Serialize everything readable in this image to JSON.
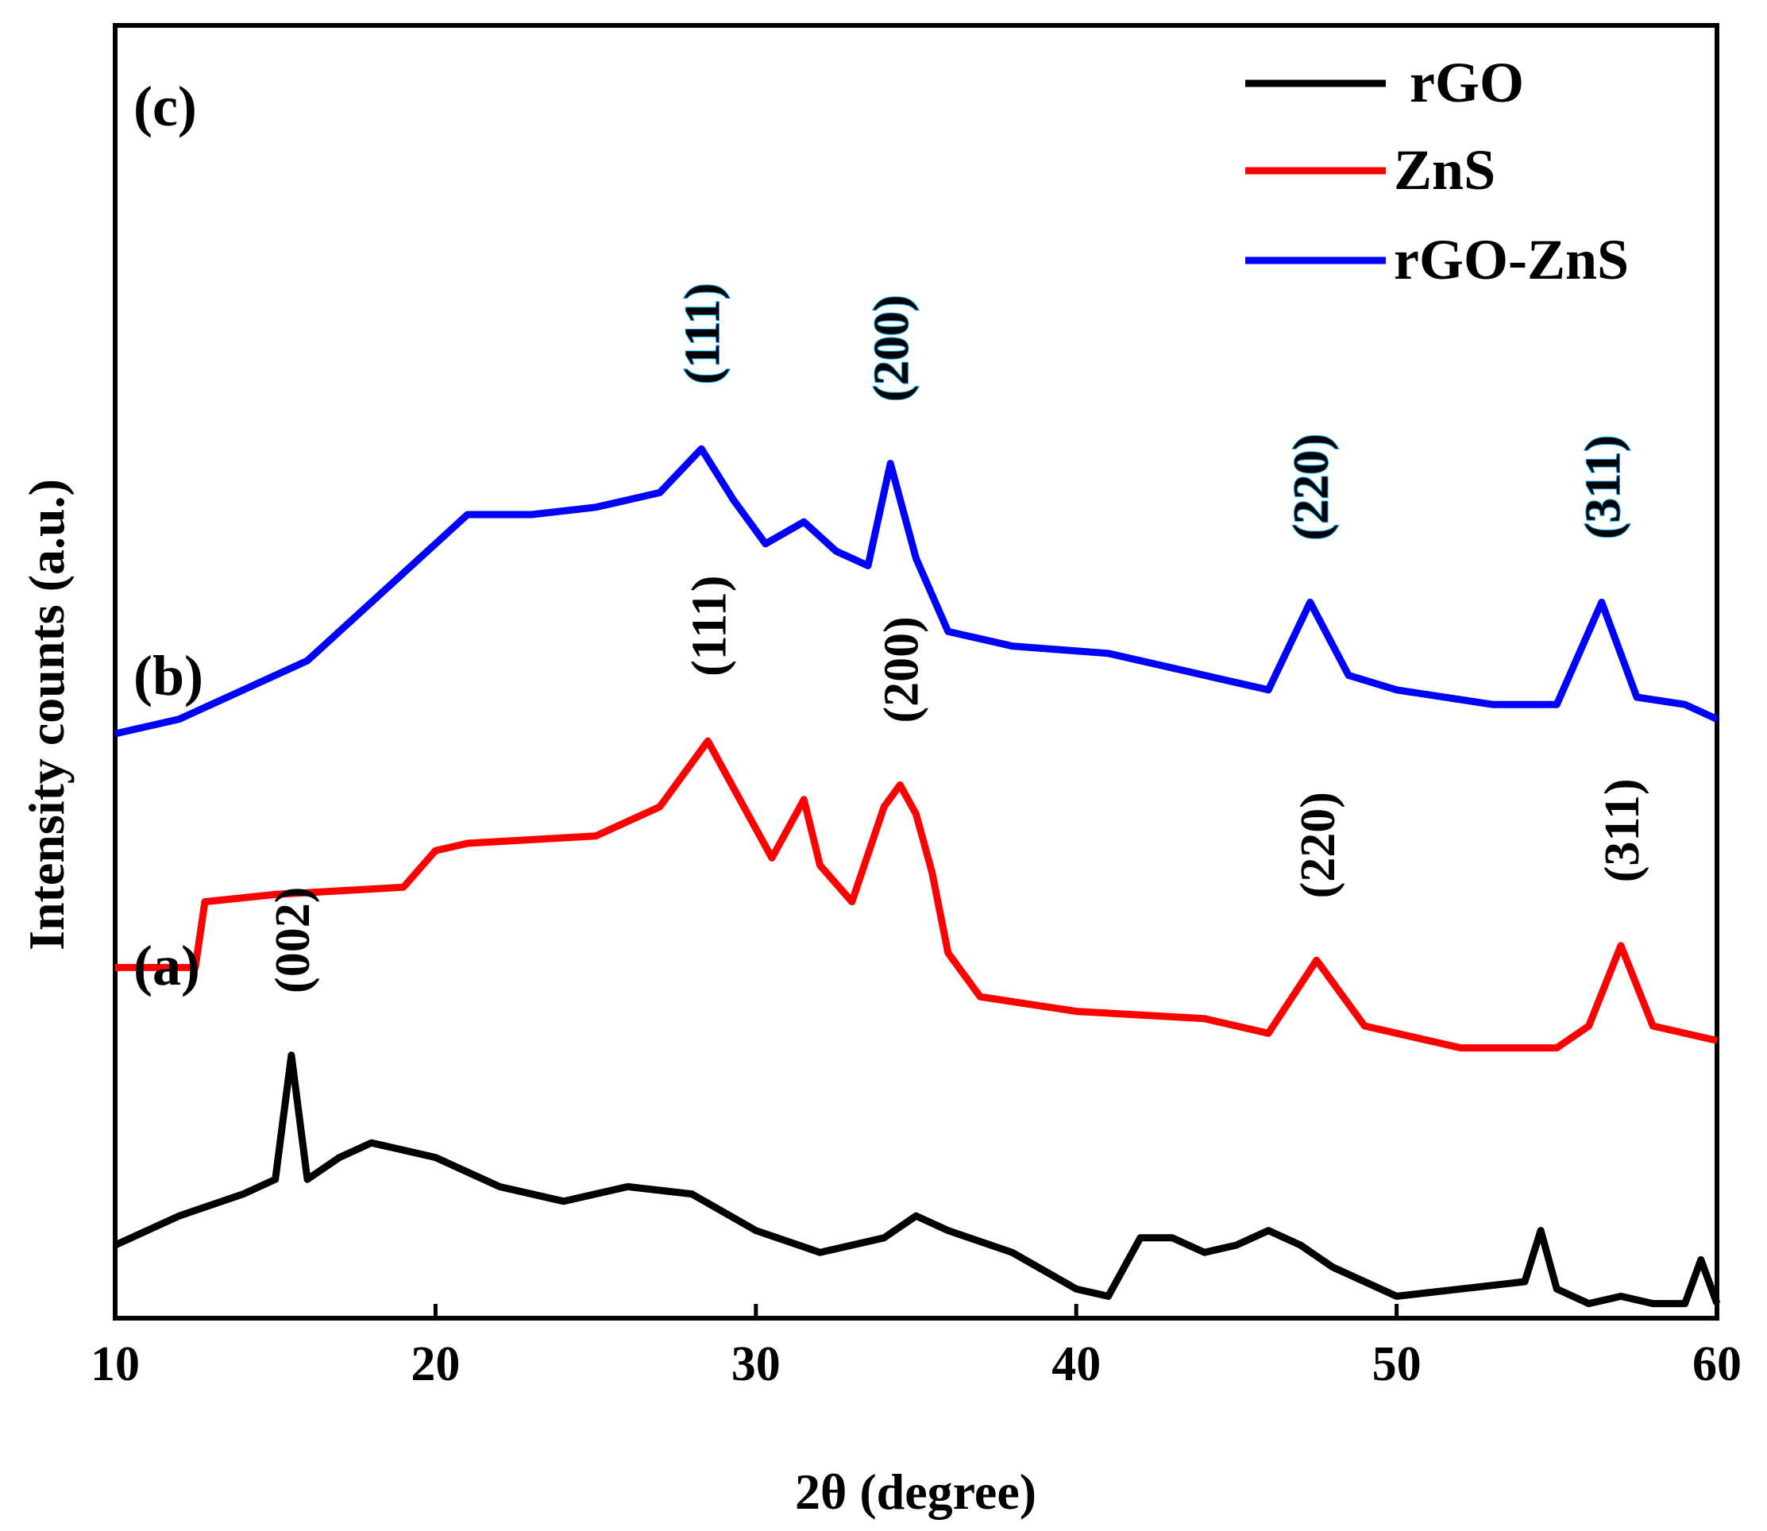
{
  "chart_data": {
    "type": "line",
    "title": "",
    "xlabel": "2θ (degree)",
    "ylabel": "Intensity counts (a.u.)",
    "xlim": [
      10,
      60
    ],
    "xticks": [
      "10",
      "20",
      "30",
      "40",
      "50",
      "60"
    ],
    "yticks_shown": false,
    "legend": {
      "placement": "top-right"
    },
    "colors": {
      "rGO": "#000000",
      "ZnS": "#ff0000",
      "rGO-ZnS": "#0000ff",
      "annotation_c": "#00aaff"
    },
    "series": [
      {
        "name": "rGO",
        "label": "(a)",
        "color": "#000000",
        "x": [
          10,
          12,
          14,
          15,
          15.5,
          16,
          17,
          18,
          19,
          20,
          22,
          24,
          26,
          28,
          30,
          32,
          34,
          35,
          36,
          38,
          40,
          41,
          42,
          43,
          44,
          45,
          46,
          47,
          48,
          50,
          52,
          54,
          54.5,
          55,
          56,
          57,
          58,
          59,
          59.5,
          60
        ],
        "values": [
          10,
          14,
          17,
          19,
          36,
          19,
          22,
          24,
          23,
          22,
          18,
          16,
          18,
          17,
          12,
          9,
          11,
          14,
          12,
          9,
          4,
          3,
          11,
          11,
          9,
          10,
          12,
          10,
          7,
          3,
          4,
          5,
          12,
          4,
          2,
          3,
          2,
          2,
          8,
          2
        ],
        "annotations": [
          {
            "x": 15.5,
            "label": "(002)"
          }
        ]
      },
      {
        "name": "ZnS",
        "label": "(b)",
        "color": "#ff0000",
        "x": [
          10,
          12.5,
          12.8,
          15,
          19,
          20,
          21,
          25,
          27,
          28.5,
          29.5,
          30.5,
          31.5,
          32,
          33,
          34,
          34.5,
          35,
          35.5,
          36,
          37,
          40,
          44,
          46,
          47.5,
          49,
          52,
          55,
          56,
          57,
          58,
          60
        ],
        "values": [
          48,
          48,
          57,
          58,
          59,
          64,
          65,
          66,
          70,
          79,
          71,
          63,
          71,
          62,
          57,
          70,
          73,
          69,
          61,
          50,
          44,
          42,
          41,
          39,
          49,
          40,
          37,
          37,
          40,
          51,
          40,
          38
        ],
        "annotations": [
          {
            "x": 28.5,
            "label": "(111)"
          },
          {
            "x": 34.5,
            "label": "(200)"
          },
          {
            "x": 47.5,
            "label": "(220)"
          },
          {
            "x": 57,
            "label": "(311)"
          }
        ]
      },
      {
        "name": "rGO-ZnS",
        "label": "(c)",
        "color": "#0000ff",
        "x": [
          10,
          12,
          14,
          16,
          18,
          20,
          21,
          23,
          25,
          27,
          28.3,
          29.3,
          30.3,
          31.5,
          32.5,
          33.5,
          34.2,
          35,
          36,
          38,
          41,
          44,
          46,
          47.3,
          48.5,
          50,
          53,
          55,
          56.4,
          57.5,
          59,
          60
        ],
        "values": [
          80,
          82,
          86,
          90,
          98,
          106,
          110,
          110,
          111,
          113,
          119,
          112,
          106,
          109,
          105,
          103,
          117,
          104,
          94,
          92,
          91,
          88,
          86,
          98,
          88,
          86,
          84,
          84,
          98,
          85,
          84,
          82
        ],
        "annotations": [
          {
            "x": 28.3,
            "label": "(111)"
          },
          {
            "x": 34.2,
            "label": "(200)"
          },
          {
            "x": 47.3,
            "label": "(220)"
          },
          {
            "x": 56.4,
            "label": "(311)"
          }
        ]
      }
    ]
  }
}
